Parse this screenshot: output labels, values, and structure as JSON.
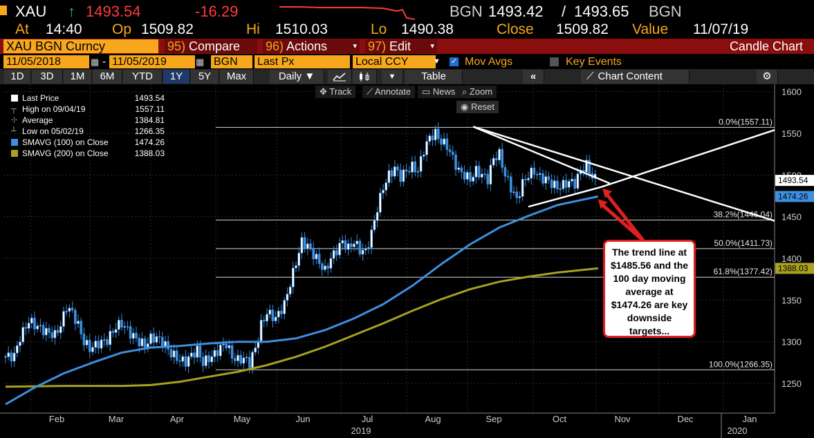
{
  "header": {
    "ticker": "XAU",
    "arrow": "↑",
    "last": "1493.54",
    "change": "-16.29",
    "source": "BGN",
    "bid": "1493.42",
    "sep": "/",
    "ask": "1493.65",
    "source2": "BGN"
  },
  "stats": {
    "at_label": "At",
    "at_value": "14:40",
    "op_label": "Op",
    "op_value": "1509.82",
    "hi_label": "Hi",
    "hi_value": "1510.03",
    "lo_label": "Lo",
    "lo_value": "1490.38",
    "close_label": "Close",
    "close_value": "1509.82",
    "value_label": "Value",
    "value_value": "11/07/19"
  },
  "toolbar": {
    "security": "XAU BGN Curncy",
    "compare_num": "95)",
    "compare_label": "Compare",
    "actions_num": "96)",
    "actions_label": "Actions",
    "edit_num": "97)",
    "edit_label": "Edit",
    "chart_type": "Candle Chart"
  },
  "params": {
    "start_date": "11/05/2018",
    "dash": "-",
    "end_date": "11/05/2019",
    "source": "BGN",
    "field": "Last Px",
    "currency": "Local CCY",
    "mov_avgs": "Mov Avgs",
    "key_events": "Key Events"
  },
  "ranges": {
    "buttons": [
      "1D",
      "3D",
      "1M",
      "6M",
      "YTD",
      "1Y",
      "5Y",
      "Max"
    ],
    "selected": "1Y",
    "period": "Daily ▼",
    "table": "Table",
    "chart_content": "Chart Content"
  },
  "chart_tools": {
    "track": "Track",
    "annotate": "Annotate",
    "news": "News",
    "zoom": "Zoom",
    "reset": "Reset"
  },
  "legend": [
    {
      "label": "Last Price",
      "value": "1493.54",
      "color": "#ffffff"
    },
    {
      "label": "High on 09/04/19",
      "value": "1557.11",
      "color": ""
    },
    {
      "label": "Average",
      "value": "1384.81",
      "color": ""
    },
    {
      "label": "Low on 05/02/19",
      "value": "1266.35",
      "color": ""
    },
    {
      "label": "SMAVG (100)  on Close",
      "value": "1474.26",
      "color": "#3d8fe0"
    },
    {
      "label": "SMAVG (200)  on Close",
      "value": "1388.03",
      "color": "#a8a020"
    }
  ],
  "colors": {
    "sma100": "#3d8fe0",
    "sma200": "#a8a020",
    "candle": "#3d8fe0",
    "accent": "#f7a71c",
    "callout_border": "#e02020"
  },
  "chart_data": {
    "type": "candlestick",
    "y_axis": {
      "ticks": [
        "1600",
        "1550",
        "1500",
        "1450",
        "1400",
        "1350",
        "1300",
        "1250"
      ],
      "ylim": [
        1225,
        1605
      ]
    },
    "x_months": [
      "Feb",
      "Mar",
      "Apr",
      "May",
      "Jun",
      "Jul",
      "Aug",
      "Sep",
      "Oct",
      "Nov",
      "Dec",
      "Jan"
    ],
    "x_years": [
      "2019",
      "2020"
    ],
    "fib_levels": [
      {
        "label": "0.0%(1557.11)",
        "value": 1557.11
      },
      {
        "label": "38.2%(1446.04)",
        "value": 1446.04
      },
      {
        "label": "50.0%(1411.73)",
        "value": 1411.73
      },
      {
        "label": "61.8%(1377.42)",
        "value": 1377.42
      },
      {
        "label": "100.0%(1266.35)",
        "value": 1266.35
      }
    ],
    "axis_badges": {
      "last": "1493.54",
      "sma100": "1474.26",
      "sma200": "1388.03"
    },
    "close_path": [
      [
        0,
        1282
      ],
      [
        3,
        1283
      ],
      [
        5,
        1305
      ],
      [
        8,
        1325
      ],
      [
        11,
        1318
      ],
      [
        14,
        1312
      ],
      [
        17,
        1308
      ],
      [
        19,
        1320
      ],
      [
        21,
        1342
      ],
      [
        23,
        1335
      ],
      [
        25,
        1320
      ],
      [
        27,
        1300
      ],
      [
        29,
        1292
      ],
      [
        32,
        1298
      ],
      [
        35,
        1302
      ],
      [
        38,
        1318
      ],
      [
        40,
        1322
      ],
      [
        43,
        1310
      ],
      [
        46,
        1300
      ],
      [
        48,
        1296
      ],
      [
        50,
        1304
      ],
      [
        52,
        1305
      ],
      [
        55,
        1296
      ],
      [
        57,
        1286
      ],
      [
        60,
        1278
      ],
      [
        62,
        1276
      ],
      [
        64,
        1284
      ],
      [
        66,
        1290
      ],
      [
        68,
        1275
      ],
      [
        70,
        1280
      ],
      [
        72,
        1285
      ],
      [
        74,
        1293
      ],
      [
        76,
        1298
      ],
      [
        78,
        1282
      ],
      [
        80,
        1278
      ],
      [
        82,
        1280
      ],
      [
        84,
        1275
      ],
      [
        86,
        1292
      ],
      [
        88,
        1320
      ],
      [
        90,
        1335
      ],
      [
        93,
        1328
      ],
      [
        96,
        1345
      ],
      [
        98,
        1370
      ],
      [
        100,
        1395
      ],
      [
        102,
        1420
      ],
      [
        104,
        1415
      ],
      [
        106,
        1405
      ],
      [
        108,
        1395
      ],
      [
        110,
        1385
      ],
      [
        112,
        1400
      ],
      [
        114,
        1410
      ],
      [
        116,
        1420
      ],
      [
        118,
        1412
      ],
      [
        120,
        1420
      ],
      [
        122,
        1410
      ],
      [
        124,
        1408
      ],
      [
        126,
        1430
      ],
      [
        128,
        1460
      ],
      [
        130,
        1485
      ],
      [
        132,
        1500
      ],
      [
        134,
        1508
      ],
      [
        136,
        1498
      ],
      [
        138,
        1505
      ],
      [
        140,
        1510
      ],
      [
        142,
        1505
      ],
      [
        144,
        1530
      ],
      [
        146,
        1545
      ],
      [
        148,
        1550
      ],
      [
        150,
        1540
      ],
      [
        152,
        1535
      ],
      [
        154,
        1520
      ],
      [
        156,
        1505
      ],
      [
        158,
        1500
      ],
      [
        160,
        1495
      ],
      [
        162,
        1505
      ],
      [
        164,
        1500
      ],
      [
        166,
        1495
      ],
      [
        168,
        1520
      ],
      [
        170,
        1525
      ],
      [
        172,
        1500
      ],
      [
        174,
        1485
      ],
      [
        176,
        1470
      ],
      [
        178,
        1490
      ],
      [
        180,
        1500
      ],
      [
        182,
        1505
      ],
      [
        184,
        1497
      ],
      [
        186,
        1495
      ],
      [
        188,
        1490
      ],
      [
        190,
        1485
      ],
      [
        192,
        1488
      ],
      [
        194,
        1492
      ],
      [
        196,
        1490
      ],
      [
        198,
        1505
      ],
      [
        200,
        1512
      ],
      [
        202,
        1498
      ],
      [
        204,
        1493
      ]
    ],
    "sma100_points": [
      [
        0,
        1225
      ],
      [
        10,
        1245
      ],
      [
        20,
        1262
      ],
      [
        30,
        1275
      ],
      [
        40,
        1287
      ],
      [
        50,
        1293
      ],
      [
        60,
        1295
      ],
      [
        70,
        1298
      ],
      [
        80,
        1300
      ],
      [
        90,
        1300
      ],
      [
        100,
        1304
      ],
      [
        110,
        1314
      ],
      [
        120,
        1328
      ],
      [
        130,
        1345
      ],
      [
        140,
        1367
      ],
      [
        150,
        1393
      ],
      [
        160,
        1417
      ],
      [
        170,
        1437
      ],
      [
        180,
        1451
      ],
      [
        190,
        1464
      ],
      [
        204,
        1474.26
      ]
    ],
    "sma200_points": [
      [
        0,
        1246
      ],
      [
        20,
        1247
      ],
      [
        40,
        1247
      ],
      [
        50,
        1248
      ],
      [
        60,
        1252
      ],
      [
        70,
        1258
      ],
      [
        80,
        1264
      ],
      [
        90,
        1272
      ],
      [
        100,
        1282
      ],
      [
        110,
        1294
      ],
      [
        120,
        1308
      ],
      [
        130,
        1322
      ],
      [
        140,
        1337
      ],
      [
        150,
        1351
      ],
      [
        160,
        1363
      ],
      [
        170,
        1372
      ],
      [
        180,
        1378
      ],
      [
        190,
        1383
      ],
      [
        204,
        1388.03
      ]
    ],
    "trend_lines": [
      {
        "from": [
          161,
          1558
        ],
        "to": [
          208,
          1490
        ]
      },
      {
        "from": [
          161,
          1558
        ],
        "to": [
          270,
          1445
        ]
      },
      {
        "from": [
          180,
          1462
        ],
        "to": [
          205,
          1485.56
        ]
      },
      {
        "from": [
          205,
          1485.56
        ],
        "to": [
          270,
          1554
        ]
      }
    ],
    "annotation": "The trend line at $1485.56 and the 100 day moving average at $1474.26 are key downside targets..."
  }
}
